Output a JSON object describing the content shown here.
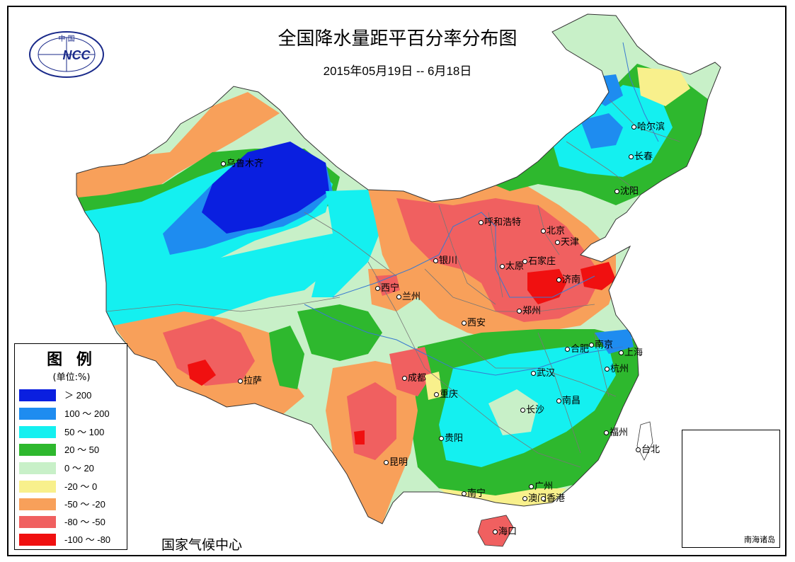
{
  "title": "全国降水量距平百分率分布图",
  "subtitle": "2015年05月19日 -- 6月18日",
  "organization": "国家气候中心",
  "logo": {
    "text": "NCC",
    "top_text": "中 国"
  },
  "legend": {
    "title": "图 例",
    "unit": "(单位:%)",
    "items": [
      {
        "label": "＞ 200",
        "color": "#0a1fe0"
      },
      {
        "label": "100 ～ 200",
        "color": "#1e8cf0"
      },
      {
        "label": "50 ～ 100",
        "color": "#14f0f0"
      },
      {
        "label": "20 ～ 50",
        "color": "#2eb82e"
      },
      {
        "label": "0 ～ 20",
        "color": "#c8f0c8"
      },
      {
        "label": "-20 ～ 0",
        "color": "#f8f08c"
      },
      {
        "label": "-50 ～ -20",
        "color": "#f8a05a"
      },
      {
        "label": "-80 ～ -50",
        "color": "#f06060"
      },
      {
        "label": "-100 ～ -80",
        "color": "#f01010"
      }
    ]
  },
  "inset_label": "南海诸岛",
  "cities": [
    {
      "name": "乌鲁木齐",
      "id": "urumqi"
    },
    {
      "name": "哈尔滨",
      "id": "harbin"
    },
    {
      "name": "长春",
      "id": "changchun"
    },
    {
      "name": "沈阳",
      "id": "shenyang"
    },
    {
      "name": "呼和浩特",
      "id": "hohhot"
    },
    {
      "name": "北京",
      "id": "beijing"
    },
    {
      "name": "天津",
      "id": "tianjin"
    },
    {
      "name": "银川",
      "id": "yinchuan"
    },
    {
      "name": "太原",
      "id": "taiyuan"
    },
    {
      "name": "石家庄",
      "id": "shijiazhuang"
    },
    {
      "name": "济南",
      "id": "jinan"
    },
    {
      "name": "西宁",
      "id": "xining"
    },
    {
      "name": "兰州",
      "id": "lanzhou"
    },
    {
      "name": "郑州",
      "id": "zhengzhou"
    },
    {
      "name": "西安",
      "id": "xian"
    },
    {
      "name": "合肥",
      "id": "hefei"
    },
    {
      "name": "南京",
      "id": "nanjing"
    },
    {
      "name": "上海",
      "id": "shanghai"
    },
    {
      "name": "拉萨",
      "id": "lhasa"
    },
    {
      "name": "成都",
      "id": "chengdu"
    },
    {
      "name": "武汉",
      "id": "wuhan"
    },
    {
      "name": "杭州",
      "id": "hangzhou"
    },
    {
      "name": "重庆",
      "id": "chongqing"
    },
    {
      "name": "南昌",
      "id": "nanchang"
    },
    {
      "name": "长沙",
      "id": "changsha"
    },
    {
      "name": "贵阳",
      "id": "guiyang"
    },
    {
      "name": "福州",
      "id": "fuzhou"
    },
    {
      "name": "台北",
      "id": "taipei"
    },
    {
      "name": "昆明",
      "id": "kunming"
    },
    {
      "name": "广州",
      "id": "guangzhou"
    },
    {
      "name": "南宁",
      "id": "nanning"
    },
    {
      "name": "澳门",
      "id": "macau"
    },
    {
      "name": "香港",
      "id": "hongkong"
    },
    {
      "name": "海口",
      "id": "haikou"
    }
  ]
}
